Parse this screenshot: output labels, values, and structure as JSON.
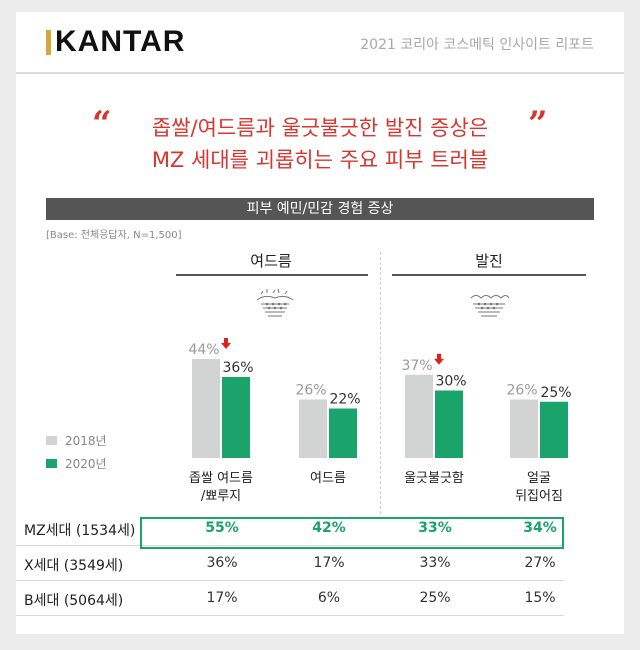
{
  "header": {
    "logo": "KANTAR",
    "report_title": "2021 코리아 코스메틱 인사이트 리포트"
  },
  "headline": {
    "open_quote": "“",
    "close_quote": "”",
    "line1": "좁쌀/여드름과 울긋불긋한 발진 증상은",
    "line2": "MZ 세대를 괴롭히는 주요 피부 트러블"
  },
  "colors": {
    "accent_red": "#d9352f",
    "series_2018": "#d2d4d3",
    "series_2020": "#1aa36b",
    "arrow_red": "#d9231f"
  },
  "chart_data": {
    "type": "bar",
    "title": "피부 예민/민감 경험 증상",
    "base_note": "[Base: 전체응답자, N=1,500]",
    "groups": [
      {
        "name": "여드름",
        "icon": "acne-skin-icon",
        "categories": [
          "좁쌀 여드름\n/뾰루지",
          "여드름"
        ]
      },
      {
        "name": "발진",
        "icon": "rash-skin-icon",
        "categories": [
          "울긋불긋함",
          "얼굴\n뒤집어짐"
        ]
      }
    ],
    "categories": [
      "좁쌀 여드름\n/뾰루지",
      "여드름",
      "울긋불긋함",
      "얼굴\n뒤집어짐"
    ],
    "series": [
      {
        "name": "2018년",
        "values": [
          44,
          26,
          37,
          26
        ]
      },
      {
        "name": "2020년",
        "values": [
          36,
          22,
          30,
          25
        ]
      }
    ],
    "value_suffix": "%",
    "decrease_arrows": [
      true,
      false,
      true,
      false
    ],
    "ylim": [
      0,
      60
    ],
    "legend_position": "left",
    "grid": false
  },
  "table": {
    "columns": [
      "좁쌀 여드름/뾰루지",
      "여드름",
      "울긋불긋함",
      "얼굴 뒤집어짐"
    ],
    "rows": [
      {
        "generation": "MZ세대 (1534세)",
        "values": [
          "55%",
          "42%",
          "33%",
          "34%"
        ],
        "highlight": true
      },
      {
        "generation": "X세대 (3549세)",
        "values": [
          "36%",
          "17%",
          "33%",
          "27%"
        ],
        "highlight": false
      },
      {
        "generation": "B세대 (5064세)",
        "values": [
          "17%",
          "6%",
          "25%",
          "15%"
        ],
        "highlight": false
      }
    ]
  }
}
